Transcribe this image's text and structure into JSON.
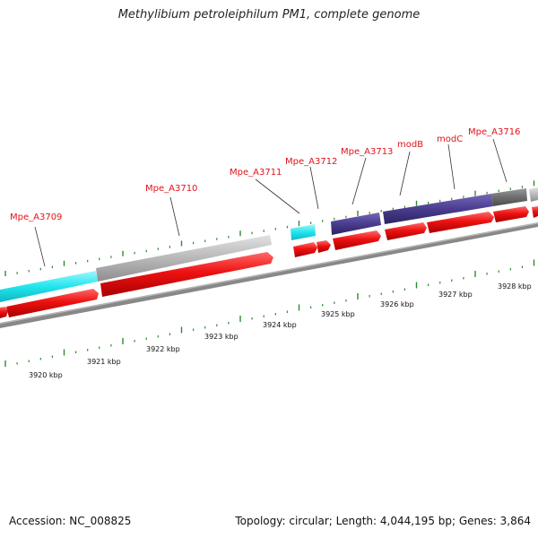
{
  "title": "Methylibium petroleiphilum PM1, complete genome",
  "footer": {
    "accession": "Accession: NC_008825",
    "summary": "Topology: circular; Length: 4,044,195 bp; Genes: 3,864"
  },
  "colors": {
    "cds": "#ee1111",
    "cds_dark": "#b00000",
    "gene_label": "#e0131a",
    "tick": "#2e8b2e",
    "backbone": "#808080",
    "feature_cyan": "#22e5ee",
    "feature_gray": "#b8b8b8",
    "feature_purple": "#4a3d8f",
    "feature_darkgray": "#6e6e6e"
  },
  "gene_labels": [
    "Mpe_A3709",
    "Mpe_A3710",
    "Mpe_A3711",
    "Mpe_A3712",
    "Mpe_A3713",
    "modB",
    "modC",
    "Mpe_A3716"
  ],
  "kbp_labels": [
    "3920 kbp",
    "3921 kbp",
    "3922 kbp",
    "3923 kbp",
    "3924 kbp",
    "3925 kbp",
    "3926 kbp",
    "3927 kbp",
    "3928 kbp"
  ]
}
